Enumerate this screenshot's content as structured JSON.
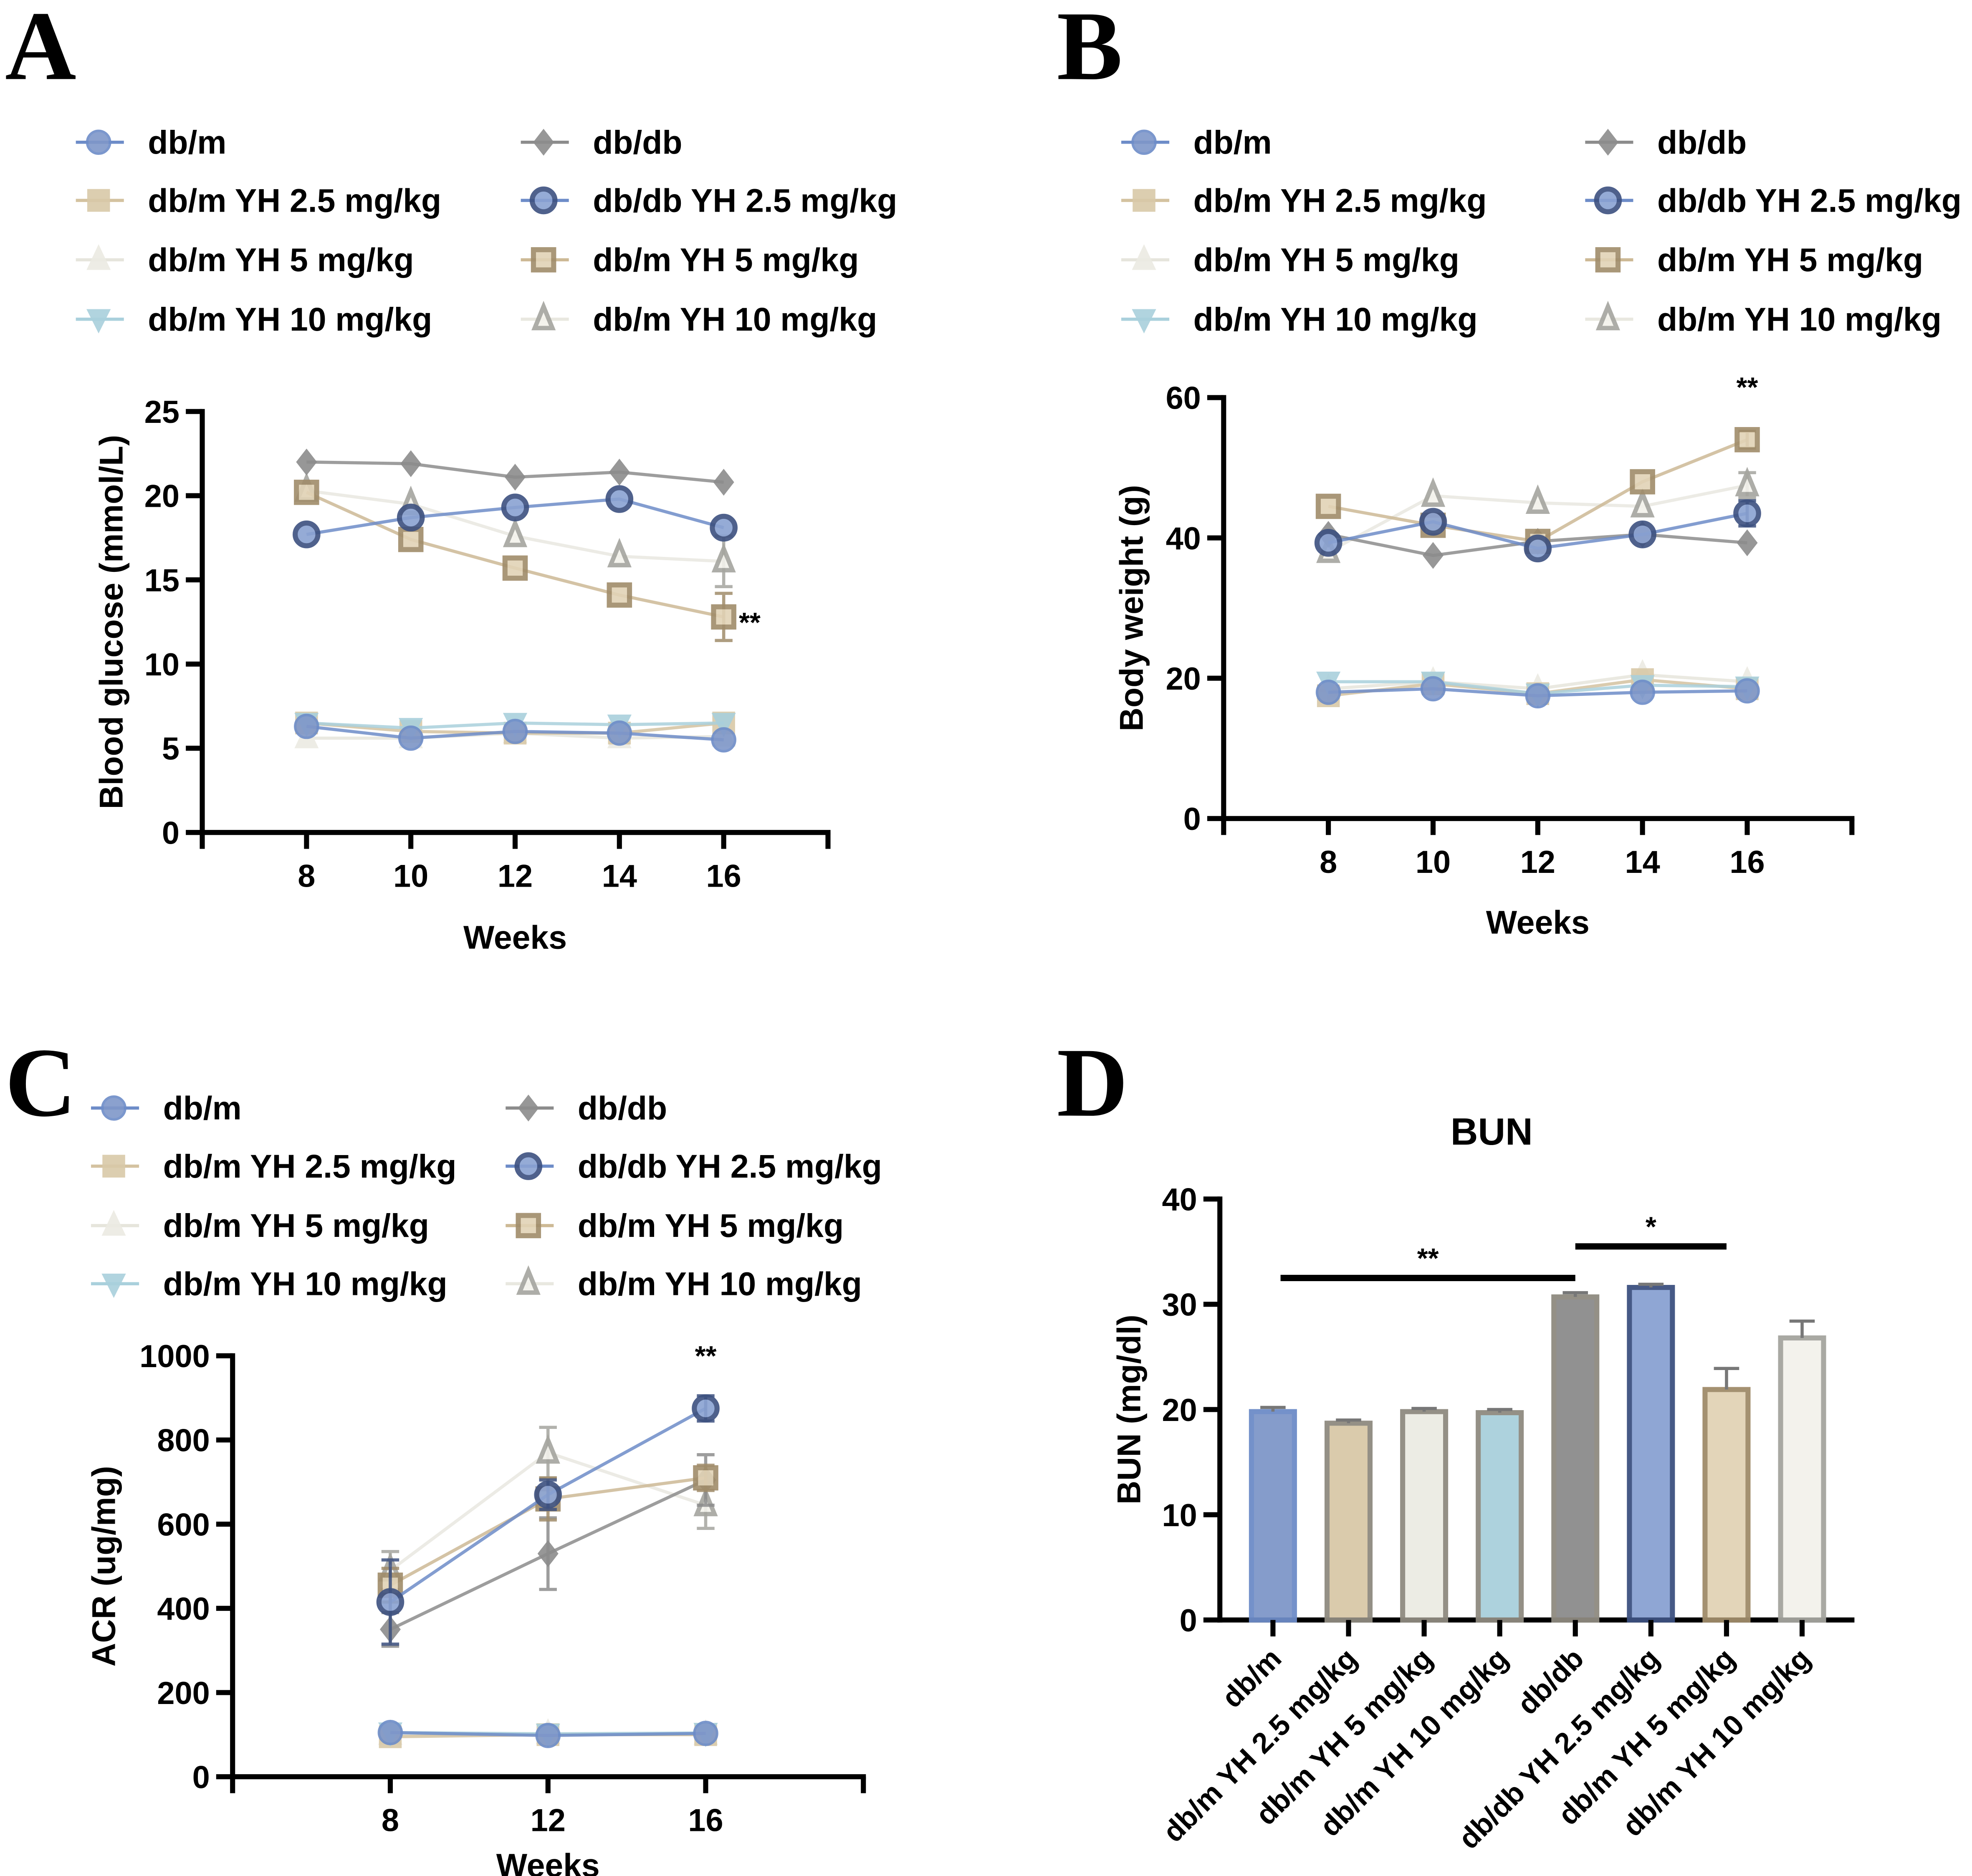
{
  "panel_letters": [
    "A",
    "B",
    "C",
    "D"
  ],
  "styles": {
    "db/m": {
      "marker": "circle",
      "fill": "#7f97c9",
      "stroke": "#6d8cc8",
      "line": "#6d8cc8"
    },
    "db/m YH 2.5 mg/kg": {
      "marker": "square",
      "fill": "#d9c9a8",
      "stroke": "#d9c9a8",
      "line": "#d4c2a0"
    },
    "db/m YH 5 mg/kg (filled)": {
      "marker": "triangle",
      "fill": "#ecebe3",
      "stroke": "#ecebe3",
      "line": "#e6e5dc"
    },
    "db/m YH 10 mg/kg (filled)": {
      "marker": "triangle-down",
      "fill": "#a9d0dc",
      "stroke": "#a9d0dc",
      "line": "#a9d0dc"
    },
    "db/db": {
      "marker": "diamond",
      "fill": "#8c8c8c",
      "stroke": "#8c8c8c",
      "line": "#8c8c8c"
    },
    "db/db YH 2.5 mg/kg": {
      "marker": "circle-outline",
      "fill": "#8aa2d2",
      "stroke": "#3d5180",
      "line": "#6d8cc8"
    },
    "db/m YH 5 mg/kg (open)": {
      "marker": "square-outline",
      "fill": "#e2d3b6",
      "stroke": "#a08c6a",
      "line": "#cdb995"
    },
    "db/m YH 10 mg/kg (open)": {
      "marker": "triangle-outline",
      "fill": "#f3f2ec",
      "stroke": "#a5a59f",
      "line": "#e9e8e0"
    }
  },
  "chart_data": [
    {
      "panel": "A",
      "type": "line",
      "xlabel": "Weeks",
      "ylabel": "Blood glucose (mmol/L)",
      "ylim": [
        0,
        25
      ],
      "yticks": [
        0,
        5,
        10,
        15,
        20,
        25
      ],
      "xticks": [
        8,
        10,
        12,
        14,
        16
      ],
      "x": [
        8,
        10,
        12,
        14,
        16
      ],
      "legend_placement": "top",
      "series": [
        {
          "name": "db/m YH 5 mg/kg",
          "style": "db/m YH 5 mg/kg (filled)",
          "values": [
            5.6,
            5.6,
            5.9,
            5.6,
            5.7
          ],
          "err": [
            0,
            0,
            0,
            0,
            0
          ]
        },
        {
          "name": "db/m YH 10 mg/kg",
          "style": "db/m YH 10 mg/kg (open)",
          "values": [
            20.3,
            19.5,
            17.6,
            16.4,
            16.1
          ],
          "err": [
            0,
            0,
            0,
            0,
            1.5
          ]
        },
        {
          "name": "db/m YH 2.5 mg/kg",
          "style": "db/m YH 2.5 mg/kg",
          "values": [
            6.5,
            6.0,
            5.9,
            5.9,
            6.5
          ],
          "err": [
            0,
            0,
            0,
            0,
            0
          ]
        },
        {
          "name": "db/m YH 10 mg/kg",
          "style": "db/m YH 10 mg/kg (filled)",
          "values": [
            6.5,
            6.2,
            6.5,
            6.4,
            6.5
          ],
          "err": [
            0,
            0,
            0,
            0,
            0
          ]
        },
        {
          "name": "db/db",
          "style": "db/db",
          "values": [
            22.0,
            21.9,
            21.1,
            21.4,
            20.8
          ],
          "err": [
            0,
            0,
            0,
            0,
            0
          ]
        },
        {
          "name": "db/m YH 5 mg/kg",
          "style": "db/m YH 5 mg/kg (open)",
          "values": [
            20.2,
            17.4,
            15.7,
            14.1,
            12.8
          ],
          "err": [
            0,
            0,
            0,
            0,
            1.4
          ]
        },
        {
          "name": "db/db YH 2.5 mg/kg",
          "style": "db/db YH 2.5 mg/kg",
          "values": [
            17.7,
            18.7,
            19.3,
            19.8,
            18.1
          ],
          "err": [
            0,
            0,
            0,
            0,
            0
          ]
        },
        {
          "name": "db/m",
          "style": "db/m",
          "values": [
            6.3,
            5.6,
            6.0,
            5.9,
            5.5
          ],
          "err": [
            0,
            0,
            0,
            0,
            0
          ]
        }
      ],
      "annotations": [
        {
          "text": "**",
          "x": 16,
          "y": 12.8,
          "position": "right"
        }
      ],
      "legend": [
        {
          "label": "db/m",
          "style": "db/m"
        },
        {
          "label": "db/m YH 2.5 mg/kg",
          "style": "db/m YH 2.5 mg/kg"
        },
        {
          "label": "db/m YH 5 mg/kg",
          "style": "db/m YH 5 mg/kg (filled)"
        },
        {
          "label": "db/m YH 10 mg/kg",
          "style": "db/m YH 10 mg/kg (filled)"
        },
        {
          "label": "db/db",
          "style": "db/db"
        },
        {
          "label": "db/db YH 2.5 mg/kg",
          "style": "db/db YH 2.5 mg/kg"
        },
        {
          "label": "db/m YH 5 mg/kg",
          "style": "db/m YH 5 mg/kg (open)"
        },
        {
          "label": "db/m YH 10 mg/kg",
          "style": "db/m YH 10 mg/kg (open)"
        }
      ]
    },
    {
      "panel": "B",
      "type": "line",
      "xlabel": "Weeks",
      "ylabel": "Body weight (g)",
      "ylim": [
        0,
        60
      ],
      "yticks": [
        0,
        20,
        40,
        60
      ],
      "xticks": [
        8,
        10,
        12,
        14,
        16
      ],
      "x": [
        8,
        10,
        12,
        14,
        16
      ],
      "legend_placement": "top",
      "series": [
        {
          "name": "db/m YH 5 mg/kg",
          "style": "db/m YH 5 mg/kg (filled)",
          "values": [
            18.5,
            19.5,
            18.5,
            20.5,
            19.5
          ],
          "err": [
            0,
            0,
            0,
            0,
            0
          ]
        },
        {
          "name": "db/m YH 10 mg/kg",
          "style": "db/m YH 10 mg/kg (open)",
          "values": [
            38.0,
            46.0,
            45.0,
            44.5,
            47.5
          ],
          "err": [
            0,
            0,
            0,
            0,
            1.8
          ]
        },
        {
          "name": "db/m YH 2.5 mg/kg",
          "style": "db/m YH 2.5 mg/kg",
          "values": [
            17.5,
            19.2,
            17.8,
            19.8,
            18.5
          ],
          "err": [
            0.8,
            0.6,
            0,
            0,
            0
          ]
        },
        {
          "name": "db/m YH 10 mg/kg",
          "style": "db/m YH 10 mg/kg (filled)",
          "values": [
            19.5,
            19.5,
            17.8,
            19.0,
            18.8
          ],
          "err": [
            0,
            0,
            0,
            0,
            0
          ]
        },
        {
          "name": "db/db",
          "style": "db/db",
          "values": [
            40.5,
            37.5,
            39.5,
            40.5,
            39.3
          ],
          "err": [
            0,
            0,
            0,
            0,
            0
          ]
        },
        {
          "name": "db/m YH 5 mg/kg",
          "style": "db/m YH 5 mg/kg (open)",
          "values": [
            44.5,
            41.8,
            39.5,
            48.0,
            54.0
          ],
          "err": [
            0,
            0,
            0,
            0,
            1.2
          ]
        },
        {
          "name": "db/db YH 2.5 mg/kg",
          "style": "db/db YH 2.5 mg/kg",
          "values": [
            39.3,
            42.3,
            38.5,
            40.5,
            43.5
          ],
          "err": [
            0,
            0,
            0,
            0,
            1.8
          ]
        },
        {
          "name": "db/m",
          "style": "db/m",
          "values": [
            18.0,
            18.5,
            17.5,
            18.0,
            18.2
          ],
          "err": [
            0,
            0,
            0,
            0,
            0
          ]
        }
      ],
      "annotations": [
        {
          "text": "**",
          "x": 16,
          "y": 54.0,
          "position": "above"
        }
      ],
      "legend": [
        {
          "label": "db/m",
          "style": "db/m"
        },
        {
          "label": "db/m YH 2.5 mg/kg",
          "style": "db/m YH 2.5 mg/kg"
        },
        {
          "label": "db/m YH 5 mg/kg",
          "style": "db/m YH 5 mg/kg (filled)"
        },
        {
          "label": "db/m YH 10 mg/kg",
          "style": "db/m YH 10 mg/kg (filled)"
        },
        {
          "label": "db/db",
          "style": "db/db"
        },
        {
          "label": "db/db YH 2.5 mg/kg",
          "style": "db/db YH 2.5 mg/kg"
        },
        {
          "label": "db/m YH 5 mg/kg",
          "style": "db/m YH 5 mg/kg (open)"
        },
        {
          "label": "db/m YH 10 mg/kg",
          "style": "db/m YH 10 mg/kg (open)"
        }
      ]
    },
    {
      "panel": "C",
      "type": "line",
      "xlabel": "Weeks",
      "ylabel": "ACR (ug/mg)",
      "ylim": [
        0,
        1000
      ],
      "yticks": [
        0,
        200,
        400,
        600,
        800,
        1000
      ],
      "xticks": [
        8,
        12,
        16
      ],
      "x": [
        8,
        12,
        16
      ],
      "legend_placement": "top",
      "series": [
        {
          "name": "db/m YH 5 mg/kg",
          "style": "db/m YH 5 mg/kg (filled)",
          "values": [
            100,
            102,
            100
          ],
          "err": [
            0,
            0,
            0
          ]
        },
        {
          "name": "db/m YH 10 mg/kg",
          "style": "db/m YH 10 mg/kg (open)",
          "values": [
            490,
            770,
            645
          ],
          "err": [
            45,
            60,
            55
          ]
        },
        {
          "name": "db/m YH 2.5 mg/kg",
          "style": "db/m YH 2.5 mg/kg",
          "values": [
            95,
            100,
            100
          ],
          "err": [
            0,
            0,
            0
          ]
        },
        {
          "name": "db/m YH 10 mg/kg",
          "style": "db/m YH 10 mg/kg (filled)",
          "values": [
            105,
            102,
            104
          ],
          "err": [
            0,
            0,
            0
          ]
        },
        {
          "name": "db/db",
          "style": "db/db",
          "values": [
            350,
            530,
            705
          ],
          "err": [
            40,
            85,
            60
          ]
        },
        {
          "name": "db/m YH 5 mg/kg",
          "style": "db/m YH 5 mg/kg (open)",
          "values": [
            455,
            660,
            710
          ],
          "err": [
            40,
            50,
            30
          ]
        },
        {
          "name": "db/db YH 2.5 mg/kg",
          "style": "db/db YH 2.5 mg/kg",
          "values": [
            415,
            670,
            875
          ],
          "err": [
            100,
            35,
            30
          ]
        },
        {
          "name": "db/m",
          "style": "db/m",
          "values": [
            105,
            98,
            103
          ],
          "err": [
            0,
            0,
            0
          ]
        }
      ],
      "annotations": [
        {
          "text": "**",
          "x": 16,
          "y": 875,
          "position": "above"
        }
      ],
      "legend": [
        {
          "label": "db/m",
          "style": "db/m"
        },
        {
          "label": "db/m YH 2.5 mg/kg",
          "style": "db/m YH 2.5 mg/kg"
        },
        {
          "label": "db/m YH 5 mg/kg",
          "style": "db/m YH 5 mg/kg (filled)"
        },
        {
          "label": "db/m YH 10 mg/kg",
          "style": "db/m YH 10 mg/kg (filled)"
        },
        {
          "label": "db/db",
          "style": "db/db"
        },
        {
          "label": "db/db YH 2.5 mg/kg",
          "style": "db/db YH 2.5 mg/kg"
        },
        {
          "label": "db/m YH 5 mg/kg",
          "style": "db/m YH 5 mg/kg (open)"
        },
        {
          "label": "db/m YH 10 mg/kg",
          "style": "db/m YH 10 mg/kg (open)"
        }
      ]
    },
    {
      "panel": "D",
      "type": "bar",
      "title": "BUN",
      "ylabel": "BUN (mg/dl)",
      "xlabel": "",
      "ylim": [
        0,
        40
      ],
      "yticks": [
        0,
        10,
        20,
        30,
        40
      ],
      "categories": [
        "db/m",
        "db/m YH 2.5 mg/kg",
        "db/m YH 5 mg/kg",
        "db/m YH 10 mg/kg",
        "db/db",
        "db/db YH 2.5 mg/kg",
        "db/m YH 5 mg/kg",
        "db/m YH 10 mg/kg"
      ],
      "values": [
        19.8,
        18.7,
        19.8,
        19.7,
        30.7,
        31.6,
        21.9,
        26.8
      ],
      "err": [
        0.4,
        0.3,
        0.3,
        0.3,
        0.4,
        0.3,
        2.0,
        1.6
      ],
      "bar_styles": [
        "db/m",
        "db/m YH 2.5 mg/kg",
        "db/m YH 5 mg/kg (filled)",
        "db/m YH 10 mg/kg (filled)",
        "db/db",
        "db/db YH 2.5 mg/kg",
        "db/m YH 5 mg/kg (open)",
        "db/m YH 10 mg/kg (open)"
      ],
      "significance": [
        {
          "text": "**",
          "from": 0,
          "to": 4,
          "y": 32.5
        },
        {
          "text": "*",
          "from": 4,
          "to": 6,
          "y": 35.5
        }
      ]
    }
  ]
}
